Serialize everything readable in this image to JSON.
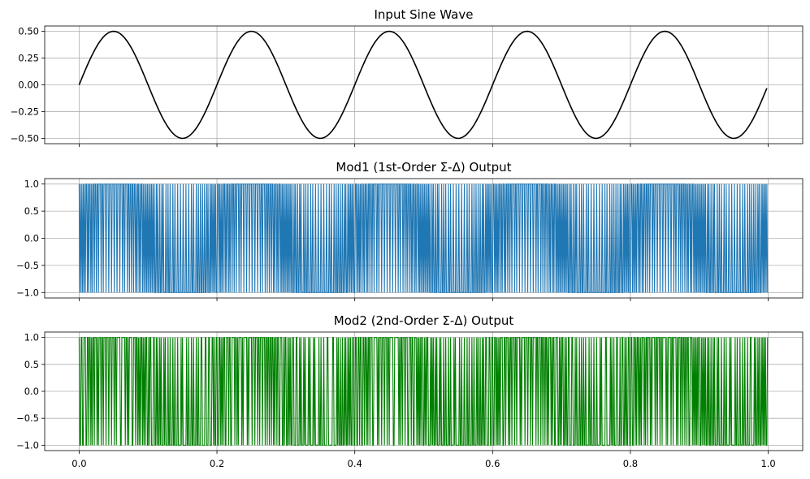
{
  "chart_data": [
    {
      "type": "line",
      "title": "Input Sine Wave",
      "xlabel": "",
      "ylabel": "",
      "xlim": [
        -0.05,
        1.05
      ],
      "ylim": [
        -0.55,
        0.55
      ],
      "xticks": [
        0.0,
        0.2,
        0.4,
        0.6,
        0.8,
        1.0
      ],
      "xtick_labels_visible": false,
      "yticks": [
        0.5,
        0.25,
        0.0,
        -0.25,
        -0.5
      ],
      "ytick_labels": [
        "0.50",
        "0.25",
        "0.00",
        "−0.25",
        "−0.50"
      ],
      "grid": true,
      "series": [
        {
          "name": "input",
          "color": "#000000",
          "function": "sine",
          "amplitude": 0.5,
          "frequency_cycles": 5,
          "x_start": 0.0,
          "x_end": 0.998
        }
      ]
    },
    {
      "type": "line",
      "title": "Mod1 (1st-Order Σ-Δ) Output",
      "xlabel": "",
      "ylabel": "",
      "xlim": [
        -0.05,
        1.05
      ],
      "ylim": [
        -1.1,
        1.1
      ],
      "xticks": [
        0.0,
        0.2,
        0.4,
        0.6,
        0.8,
        1.0
      ],
      "xtick_labels_visible": false,
      "yticks": [
        1.0,
        0.5,
        0.0,
        -0.5,
        -1.0
      ],
      "ytick_labels": [
        "1.0",
        "0.5",
        "0.0",
        "−0.5",
        "−1.0"
      ],
      "grid": true,
      "series": [
        {
          "name": "mod1",
          "color": "#1f77b4",
          "levels": [
            -1,
            1
          ],
          "order": 1,
          "input_amplitude": 0.5,
          "input_frequency_cycles": 5,
          "samples": 1000
        }
      ]
    },
    {
      "type": "line",
      "title": "Mod2 (2nd-Order Σ-Δ) Output",
      "xlabel": "",
      "ylabel": "",
      "xlim": [
        -0.05,
        1.05
      ],
      "ylim": [
        -1.1,
        1.1
      ],
      "xticks": [
        0.0,
        0.2,
        0.4,
        0.6,
        0.8,
        1.0
      ],
      "xtick_labels": [
        "0.0",
        "0.2",
        "0.4",
        "0.6",
        "0.8",
        "1.0"
      ],
      "xtick_labels_visible": true,
      "yticks": [
        1.0,
        0.5,
        0.0,
        -0.5,
        -1.0
      ],
      "ytick_labels": [
        "1.0",
        "0.5",
        "0.0",
        "−0.5",
        "−1.0"
      ],
      "grid": true,
      "series": [
        {
          "name": "mod2",
          "color": "#008000",
          "levels": [
            -1,
            1
          ],
          "order": 2,
          "input_amplitude": 0.5,
          "input_frequency_cycles": 5,
          "samples": 1000
        }
      ]
    }
  ]
}
